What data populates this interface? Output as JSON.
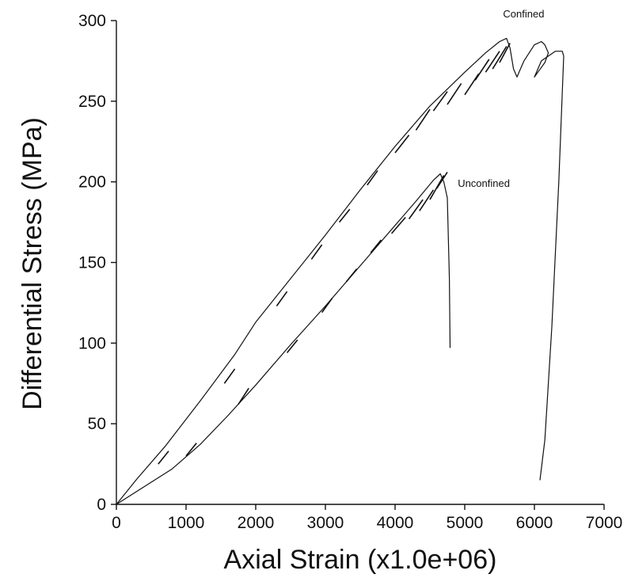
{
  "chart_data": {
    "type": "line",
    "title": "",
    "xlabel": "Axial Strain (x1.0e+06)",
    "ylabel": "Differential Stress (MPa)",
    "xlim": [
      0,
      7000
    ],
    "ylim": [
      0,
      300
    ],
    "x_ticks": [
      0,
      1000,
      2000,
      3000,
      4000,
      5000,
      6000,
      7000
    ],
    "y_ticks": [
      0,
      50,
      100,
      150,
      200,
      250,
      300
    ],
    "grid": false,
    "legend": "none",
    "series": [
      {
        "name": "Confined",
        "label_at": [
          5550,
          302
        ],
        "x": [
          0,
          300,
          700,
          1200,
          1700,
          2000,
          2500,
          3000,
          3500,
          4000,
          4500,
          5000,
          5300,
          5500,
          5600,
          5650,
          5700,
          5750,
          5850,
          6000,
          6100,
          6150,
          6200,
          6150,
          6050,
          6000,
          6100,
          6300,
          6400,
          6420,
          6350,
          6250,
          6150,
          6080
        ],
        "y": [
          0,
          16,
          36,
          64,
          93,
          113,
          140,
          167,
          195,
          222,
          247,
          268,
          280,
          287,
          289,
          283,
          270,
          265,
          275,
          285,
          287,
          285,
          280,
          274,
          268,
          265,
          275,
          281,
          281,
          278,
          200,
          110,
          40,
          15
        ],
        "cycles": [
          [
            [
              600,
              25
            ],
            [
              750,
              33
            ]
          ],
          [
            [
              1550,
              75
            ],
            [
              1700,
              84
            ]
          ],
          [
            [
              2300,
              123
            ],
            [
              2450,
              132
            ]
          ],
          [
            [
              2800,
              152
            ],
            [
              2950,
              161
            ]
          ],
          [
            [
              3200,
              175
            ],
            [
              3350,
              183
            ]
          ],
          [
            [
              3600,
              198
            ],
            [
              3750,
              207
            ]
          ],
          [
            [
              4000,
              218
            ],
            [
              4200,
              229
            ]
          ],
          [
            [
              4300,
              232
            ],
            [
              4500,
              245
            ]
          ],
          [
            [
              4550,
              244
            ],
            [
              4750,
              256
            ]
          ],
          [
            [
              4750,
              248
            ],
            [
              4950,
              261
            ]
          ],
          [
            [
              5000,
              254
            ],
            [
              5200,
              267
            ]
          ],
          [
            [
              5150,
              263
            ],
            [
              5350,
              276
            ]
          ],
          [
            [
              5300,
              268
            ],
            [
              5500,
              281
            ]
          ],
          [
            [
              5400,
              270
            ],
            [
              5600,
              284
            ]
          ],
          [
            [
              5500,
              274
            ],
            [
              5650,
              286
            ]
          ]
        ]
      },
      {
        "name": "Unconfined",
        "label_at": [
          4900,
          197
        ],
        "x": [
          0,
          400,
          800,
          1200,
          1600,
          2000,
          2500,
          3000,
          3500,
          4000,
          4300,
          4550,
          4650,
          4700,
          4750,
          4780,
          4790
        ],
        "y": [
          0,
          11,
          22,
          37,
          55,
          74,
          99,
          123,
          148,
          173,
          188,
          201,
          205,
          200,
          190,
          140,
          97
        ],
        "cycles": [
          [
            [
              1000,
              30
            ],
            [
              1150,
              38
            ]
          ],
          [
            [
              1750,
              62
            ],
            [
              1900,
              72
            ]
          ],
          [
            [
              2450,
              94
            ],
            [
              2600,
              102
            ]
          ],
          [
            [
              2950,
              119
            ],
            [
              3100,
              128
            ]
          ],
          [
            [
              3300,
              138
            ],
            [
              3450,
              146
            ]
          ],
          [
            [
              3650,
              156
            ],
            [
              3800,
              164
            ]
          ],
          [
            [
              3950,
              168
            ],
            [
              4150,
              178
            ]
          ],
          [
            [
              4200,
              177
            ],
            [
              4400,
              189
            ]
          ],
          [
            [
              4350,
              182
            ],
            [
              4550,
              195
            ]
          ],
          [
            [
              4500,
              189
            ],
            [
              4700,
              204
            ]
          ],
          [
            [
              4600,
              196
            ],
            [
              4750,
              206
            ]
          ]
        ]
      }
    ]
  }
}
